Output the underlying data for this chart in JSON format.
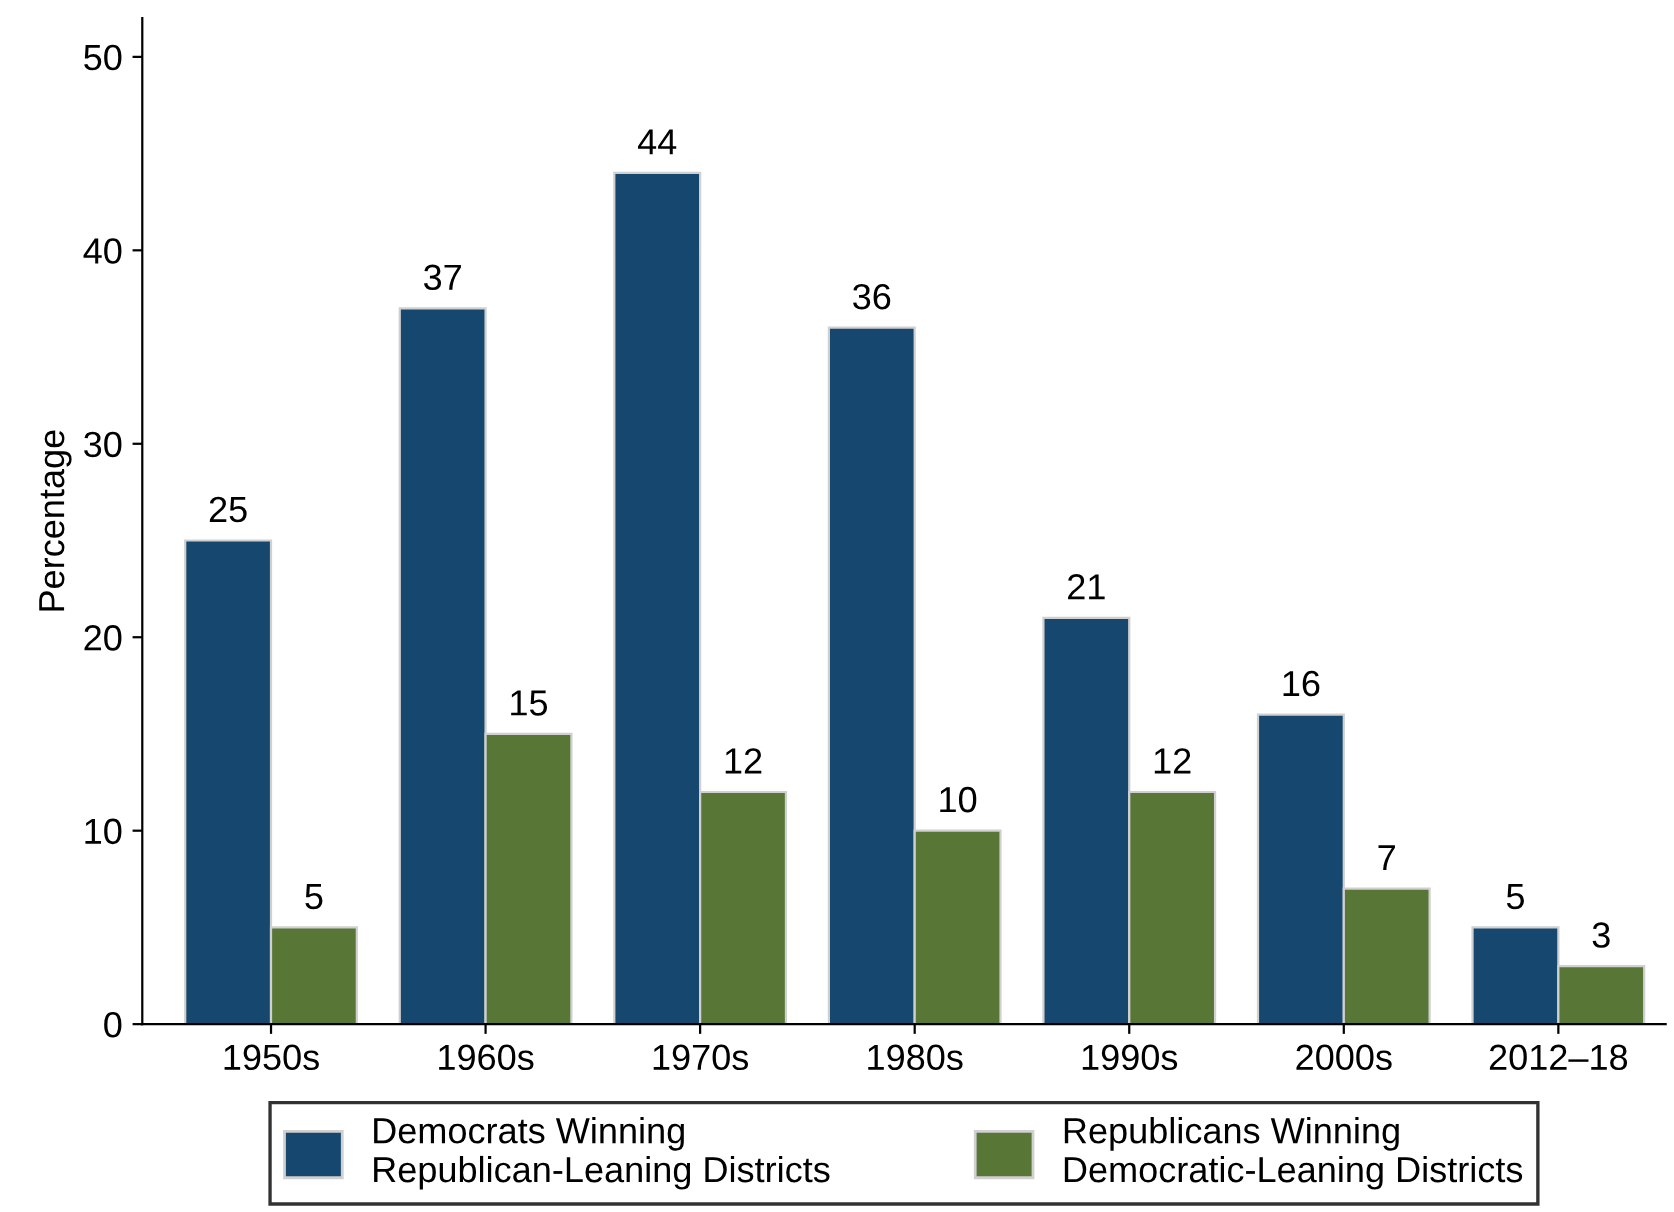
{
  "chart_data": {
    "type": "bar",
    "ylabel": "Percentage",
    "categories": [
      "1950s",
      "1960s",
      "1970s",
      "1980s",
      "1990s",
      "2000s",
      "2012–18"
    ],
    "series": [
      {
        "name": "Democrats Winning\nRepublican-Leaning Districts",
        "color": "#16486f",
        "values": [
          25,
          37,
          44,
          36,
          21,
          16,
          5
        ]
      },
      {
        "name": "Republicans Winning\nDemocratic-Leaning Districts",
        "color": "#587636",
        "values": [
          5,
          15,
          12,
          10,
          12,
          7,
          3
        ]
      }
    ],
    "ylim": [
      0,
      52
    ],
    "yticks": [
      0,
      10,
      20,
      30,
      40,
      50
    ],
    "grid": false,
    "legend": "bottom",
    "data_labels": true
  }
}
